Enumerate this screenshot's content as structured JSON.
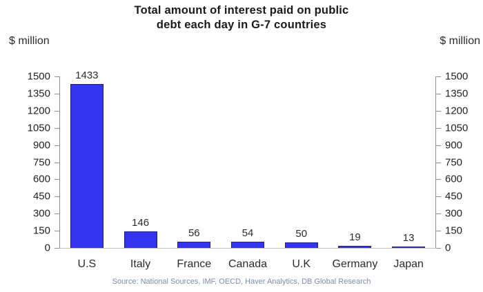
{
  "title": {
    "line1": "Total amount of interest paid on public",
    "line2": "debt each day in G-7 countries"
  },
  "unit_label_left": "$ million",
  "unit_label_right": "$ million",
  "source": "Source: National Sources, IMF, OECD, Haver Analytics, DB Global Research",
  "colors": {
    "bar_fill": "#3434ee",
    "bar_border": "#20207e",
    "axis": "#8f8f8f",
    "baseline": "#c2c2c2",
    "source_text": "#7c8ba4"
  },
  "chart_data": {
    "type": "bar",
    "title": "Total amount of interest paid on public debt each day in G-7 countries",
    "categories": [
      "U.S",
      "Italy",
      "France",
      "Canada",
      "U.K",
      "Germany",
      "Japan"
    ],
    "values": [
      1433,
      146,
      56,
      54,
      50,
      19,
      13
    ],
    "value_labels": [
      "1433",
      "146",
      "56",
      "54",
      "50",
      "19",
      "13"
    ],
    "xlabel": "",
    "ylabel": "$ million",
    "ylim": [
      0,
      1500
    ],
    "yticks": [
      0,
      150,
      300,
      450,
      600,
      750,
      900,
      1050,
      1200,
      1350,
      1500
    ],
    "grid": false,
    "legend_position": "none",
    "dual_y_axis": true,
    "data_labels_shown": true
  }
}
